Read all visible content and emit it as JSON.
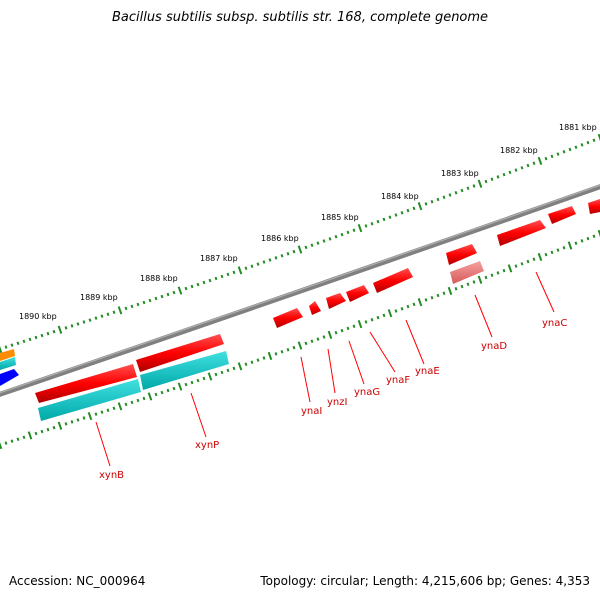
{
  "title": "Bacillus subtilis subsp. subtilis str. 168, complete genome",
  "scale_labels": [
    "1881 kbp",
    "1882 kbp",
    "1883 kbp",
    "1884 kbp",
    "1885 kbp",
    "1886 kbp",
    "1887 kbp",
    "1888 kbp",
    "1889 kbp",
    "1890 kbp"
  ],
  "genes": [
    {
      "name": "ynaC",
      "color": "#ff0000"
    },
    {
      "name": "ynaD",
      "color": "#f08080"
    },
    {
      "name": "ynaE",
      "color": "#ff0000"
    },
    {
      "name": "ynaF",
      "color": "#ff0000"
    },
    {
      "name": "ynaG",
      "color": "#ff0000"
    },
    {
      "name": "ynzI",
      "color": "#ff0000"
    },
    {
      "name": "ynaI",
      "color": "#ff0000"
    },
    {
      "name": "xynP",
      "color": "#ff0000"
    },
    {
      "name": "xynB",
      "color": "#ff0000"
    }
  ],
  "colors": {
    "backbone": "#808080",
    "forward_strand_gene": "#ff0000",
    "pseudo_gene": "#f08080",
    "cds": "#00cccc",
    "tick": "#228b22",
    "other_orange": "#ff8c00",
    "other_blue": "#0000ff"
  },
  "footer": {
    "accession": "Accession: NC_000964",
    "summary": "Topology: circular; Length: 4,215,606 bp; Genes: 4,353"
  }
}
